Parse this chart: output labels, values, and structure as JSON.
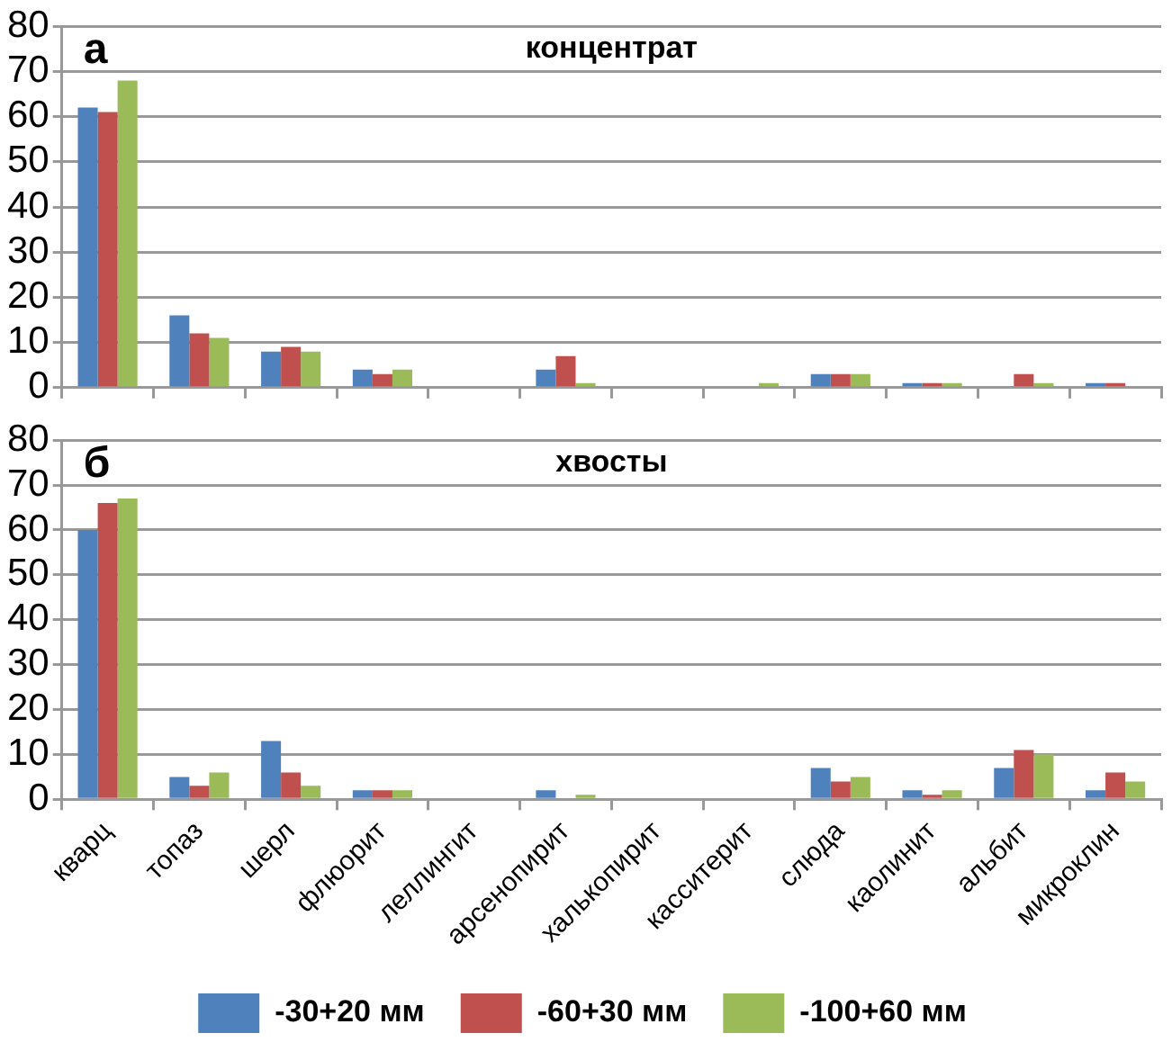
{
  "chart_data": [
    {
      "type": "bar",
      "title": "концентрат",
      "annotations": [
        "а"
      ],
      "categories": [
        null,
        null,
        null,
        null,
        null,
        null,
        null,
        null,
        null,
        null,
        null,
        null
      ],
      "series": [
        {
          "color": "#4f81bd",
          "values": [
            62,
            16,
            8,
            4,
            0,
            4,
            0,
            0,
            3,
            1,
            0,
            1
          ]
        },
        {
          "color": "#c0504d",
          "values": [
            61,
            12,
            9,
            3,
            0,
            7,
            0,
            0,
            3,
            1,
            3,
            1
          ]
        },
        {
          "color": "#9bbb59",
          "values": [
            68,
            11,
            8,
            4,
            0,
            1,
            0,
            1,
            3,
            1,
            1,
            0
          ]
        }
      ],
      "ylim": [
        0,
        80
      ],
      "yticks": [
        0,
        10,
        20,
        30,
        40,
        50,
        60,
        70,
        80
      ],
      "grid": "y",
      "tick_labels": "y",
      "legend": false
    },
    {
      "type": "bar",
      "title": "хвосты",
      "annotations": [
        "б"
      ],
      "categories": [
        "кварц",
        "топаз",
        "шерл",
        "флюорит",
        "леллингит",
        "арсенопирит",
        "халькопирит",
        "касситерит",
        "слюда",
        "каолинит",
        "альбит",
        "микроклин"
      ],
      "series": [
        {
          "name": "-30+20 мм",
          "color": "#4f81bd",
          "values": [
            60,
            5,
            13,
            2,
            0,
            2,
            0,
            0,
            7,
            2,
            7,
            2
          ]
        },
        {
          "name": "-60+30 мм",
          "color": "#c0504d",
          "values": [
            66,
            3,
            6,
            2,
            0,
            0,
            0,
            0,
            4,
            1,
            11,
            6
          ]
        },
        {
          "name": "-100+60 мм",
          "color": "#9bbb59",
          "values": [
            67,
            6,
            3,
            2,
            0,
            1,
            0,
            0,
            5,
            2,
            10,
            4
          ]
        }
      ],
      "ylim": [
        0,
        80
      ],
      "yticks": [
        0,
        10,
        20,
        30,
        40,
        50,
        60,
        70,
        80
      ],
      "grid": "y",
      "legend": "bottom"
    }
  ]
}
